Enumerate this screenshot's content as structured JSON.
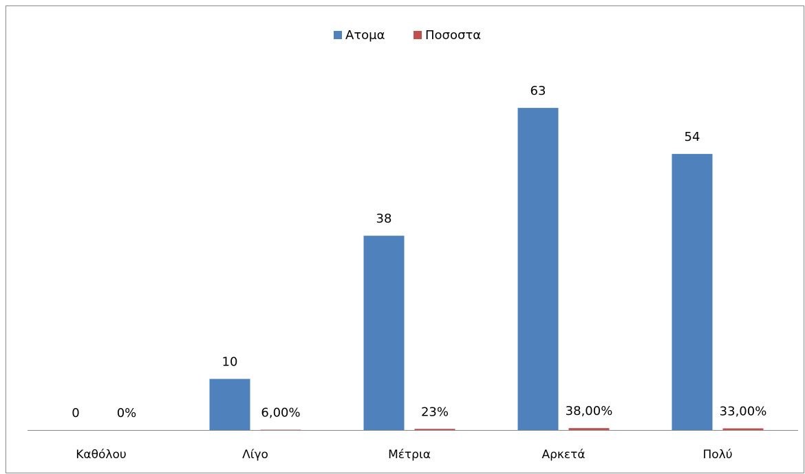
{
  "chart_data": {
    "type": "bar",
    "categories": [
      "Καθόλου",
      "Λίγο",
      "Μέτρια",
      "Αρκετά",
      "Πολύ"
    ],
    "series": [
      {
        "name": "Ατομα",
        "color": "#4f81bd",
        "values": [
          0,
          10,
          38,
          63,
          54
        ]
      },
      {
        "name": "Ποσοστα",
        "color": "#c0504d",
        "values": [
          0,
          0.06,
          0.23,
          0.38,
          0.33
        ],
        "value_labels": [
          "0%",
          "6,00%",
          "23%",
          "38,00%",
          "33,00%"
        ]
      }
    ],
    "ylim": [
      0,
      70
    ],
    "legend": "top"
  }
}
